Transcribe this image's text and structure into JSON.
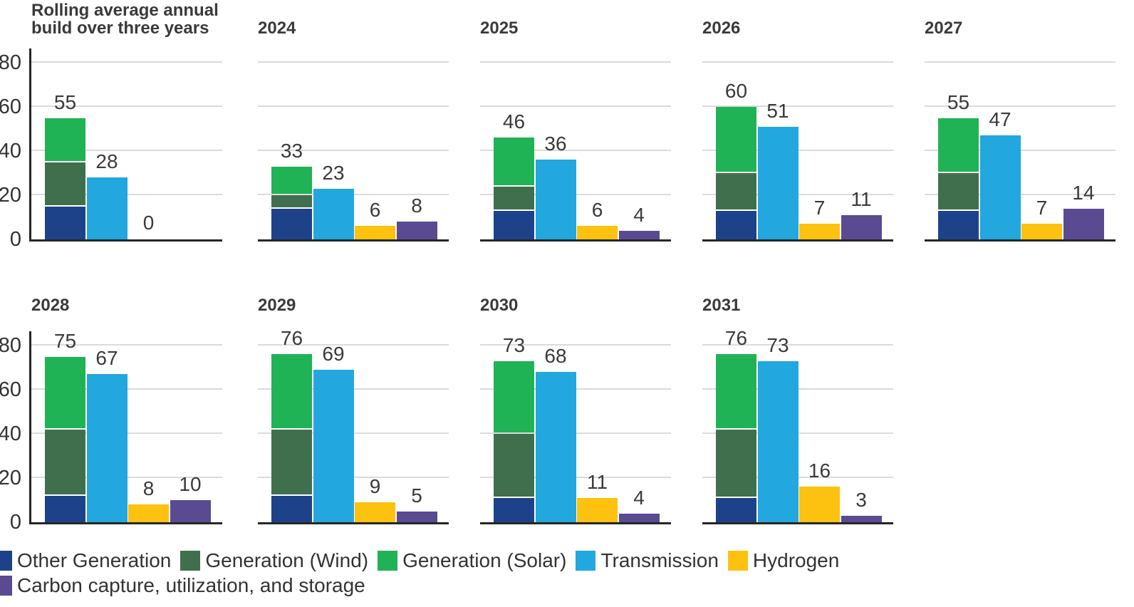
{
  "title": {
    "line1": "Rolling average annual",
    "line2": "build over three years"
  },
  "colors": {
    "other_generation": "#1D4289",
    "generation_wind": "#406F4D",
    "generation_solar": "#20B355",
    "transmission": "#23A7DF",
    "hydrogen": "#FDC110",
    "ccus": "#5A4A92",
    "gridline": "#DBDBDB",
    "axis": "#262626",
    "text": "#3A3A3A"
  },
  "legend": {
    "rows": [
      [
        0,
        1,
        2,
        3,
        4
      ],
      [
        5
      ]
    ],
    "items": [
      {
        "key": "other-generation",
        "label": "Other Generation",
        "color": "#1D4289"
      },
      {
        "key": "generation-wind",
        "label": "Generation (Wind)",
        "color": "#406F4D"
      },
      {
        "key": "generation-solar",
        "label": "Generation (Solar)",
        "color": "#20B355"
      },
      {
        "key": "transmission",
        "label": "Transmission",
        "color": "#23A7DF"
      },
      {
        "key": "hydrogen",
        "label": "Hydrogen",
        "color": "#FDC110"
      },
      {
        "key": "ccus",
        "label": "Carbon capture, utilization, and storage",
        "color": "#5A4A92"
      }
    ]
  },
  "chart_data": {
    "type": "bar",
    "title": "Rolling average annual build over three years",
    "xlabel": "",
    "ylabel": "",
    "ylim": [
      0,
      87
    ],
    "yticks": [
      0,
      20,
      40,
      60,
      80
    ],
    "grid": true,
    "legend_position": "bottom",
    "series_names": [
      "Other Generation",
      "Generation (Wind)",
      "Generation (Solar)",
      "Transmission",
      "Hydrogen",
      "Carbon capture, utilization, and storage"
    ],
    "rows": [
      [
        0,
        1,
        2,
        3,
        4
      ],
      [
        5,
        6,
        7,
        8
      ]
    ],
    "panels": [
      {
        "year": "",
        "show_axis": true,
        "stack": {
          "other_generation": 15,
          "generation_wind": 20,
          "generation_solar": 20
        },
        "stack_total": 55,
        "transmission": 28,
        "hydrogen": 0,
        "ccus": 0,
        "value_labels": {
          "stack": "55",
          "transmission": "28",
          "hydrogen": "0",
          "ccus": ""
        }
      },
      {
        "year": "2024",
        "show_axis": false,
        "stack": {
          "other_generation": 14,
          "generation_wind": 6,
          "generation_solar": 13
        },
        "stack_total": 33,
        "transmission": 23,
        "hydrogen": 6,
        "ccus": 8,
        "value_labels": {
          "stack": "33",
          "transmission": "23",
          "hydrogen": "6",
          "ccus": "8"
        }
      },
      {
        "year": "2025",
        "show_axis": false,
        "stack": {
          "other_generation": 13,
          "generation_wind": 11,
          "generation_solar": 22
        },
        "stack_total": 46,
        "transmission": 36,
        "hydrogen": 6,
        "ccus": 4,
        "value_labels": {
          "stack": "46",
          "transmission": "36",
          "hydrogen": "6",
          "ccus": "4"
        }
      },
      {
        "year": "2026",
        "show_axis": false,
        "stack": {
          "other_generation": 13,
          "generation_wind": 17,
          "generation_solar": 30
        },
        "stack_total": 60,
        "transmission": 51,
        "hydrogen": 7,
        "ccus": 11,
        "value_labels": {
          "stack": "60",
          "transmission": "51",
          "hydrogen": "7",
          "ccus": "11"
        }
      },
      {
        "year": "2027",
        "show_axis": false,
        "stack": {
          "other_generation": 13,
          "generation_wind": 17,
          "generation_solar": 25
        },
        "stack_total": 55,
        "transmission": 47,
        "hydrogen": 7,
        "ccus": 14,
        "value_labels": {
          "stack": "55",
          "transmission": "47",
          "hydrogen": "7",
          "ccus": "14"
        }
      },
      {
        "year": "2028",
        "show_axis": true,
        "stack": {
          "other_generation": 12,
          "generation_wind": 30,
          "generation_solar": 33
        },
        "stack_total": 75,
        "transmission": 67,
        "hydrogen": 8,
        "ccus": 10,
        "value_labels": {
          "stack": "75",
          "transmission": "67",
          "hydrogen": "8",
          "ccus": "10"
        }
      },
      {
        "year": "2029",
        "show_axis": false,
        "stack": {
          "other_generation": 12,
          "generation_wind": 30,
          "generation_solar": 34
        },
        "stack_total": 76,
        "transmission": 69,
        "hydrogen": 9,
        "ccus": 5,
        "value_labels": {
          "stack": "76",
          "transmission": "69",
          "hydrogen": "9",
          "ccus": "5"
        }
      },
      {
        "year": "2030",
        "show_axis": false,
        "stack": {
          "other_generation": 11,
          "generation_wind": 29,
          "generation_solar": 33
        },
        "stack_total": 73,
        "transmission": 68,
        "hydrogen": 11,
        "ccus": 4,
        "value_labels": {
          "stack": "73",
          "transmission": "68",
          "hydrogen": "11",
          "ccus": "4"
        }
      },
      {
        "year": "2031",
        "show_axis": false,
        "stack": {
          "other_generation": 11,
          "generation_wind": 31,
          "generation_solar": 34
        },
        "stack_total": 76,
        "transmission": 73,
        "hydrogen": 16,
        "ccus": 3,
        "value_labels": {
          "stack": "76",
          "transmission": "73",
          "hydrogen": "16",
          "ccus": "3"
        }
      }
    ]
  }
}
